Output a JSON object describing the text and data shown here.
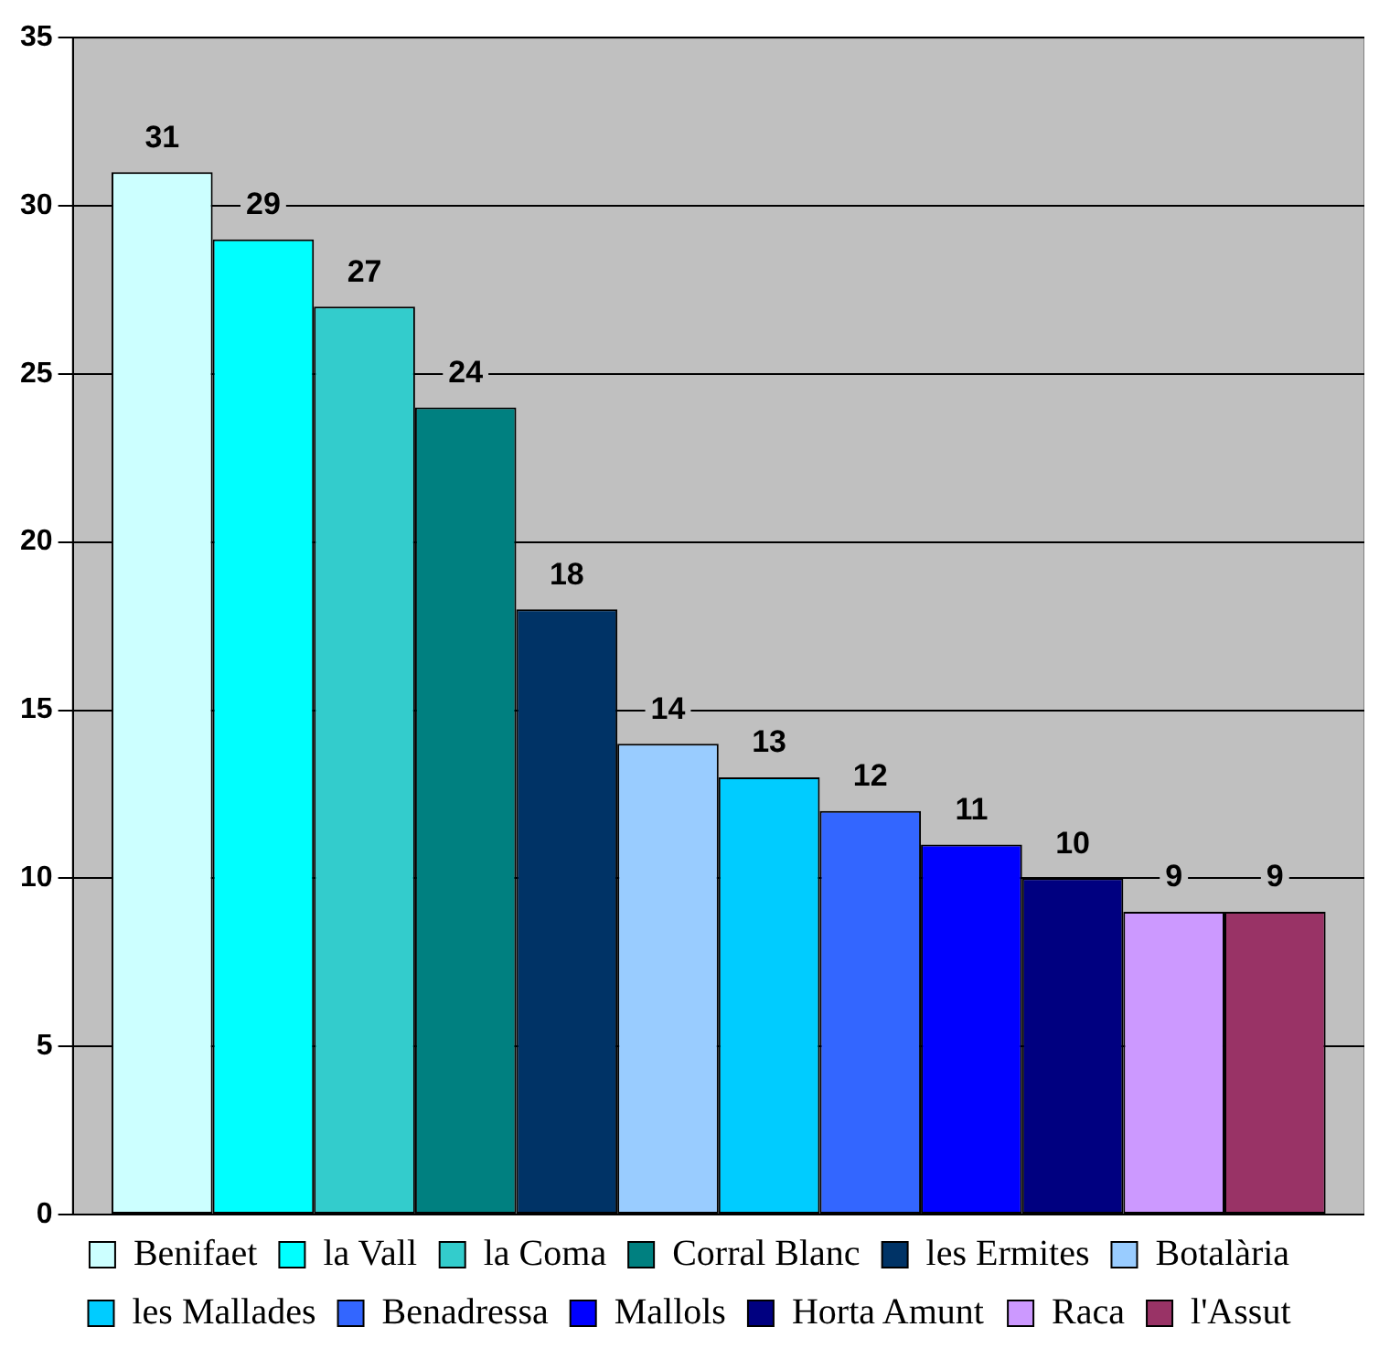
{
  "chart_data": {
    "type": "bar",
    "categories": [
      null
    ],
    "series": [
      {
        "name": "Benifaet",
        "color": "#ccffff",
        "values": [
          31
        ]
      },
      {
        "name": "la Vall",
        "color": "#00ffff",
        "values": [
          29
        ]
      },
      {
        "name": "la Coma",
        "color": "#33cccc",
        "values": [
          27
        ]
      },
      {
        "name": "Corral Blanc",
        "color": "#008080",
        "values": [
          24
        ]
      },
      {
        "name": "les Ermites",
        "color": "#003366",
        "values": [
          18
        ]
      },
      {
        "name": "Botalària",
        "color": "#99ccff",
        "values": [
          14
        ]
      },
      {
        "name": "les Mallades",
        "color": "#00ccff",
        "values": [
          13
        ]
      },
      {
        "name": "Benadressa",
        "color": "#3366ff",
        "values": [
          12
        ]
      },
      {
        "name": "Mallols",
        "color": "#0000ff",
        "values": [
          11
        ]
      },
      {
        "name": "Horta Amunt",
        "color": "#000080",
        "values": [
          10
        ]
      },
      {
        "name": "Raca",
        "color": "#cc99ff",
        "values": [
          9
        ]
      },
      {
        "name": "l'Assut",
        "color": "#993366",
        "values": [
          9
        ]
      }
    ],
    "ylim": [
      0,
      35
    ],
    "yticks": [
      0,
      5,
      10,
      15,
      20,
      25,
      30,
      35
    ],
    "grid": "y",
    "legend": "bottom",
    "data_labels": true
  }
}
